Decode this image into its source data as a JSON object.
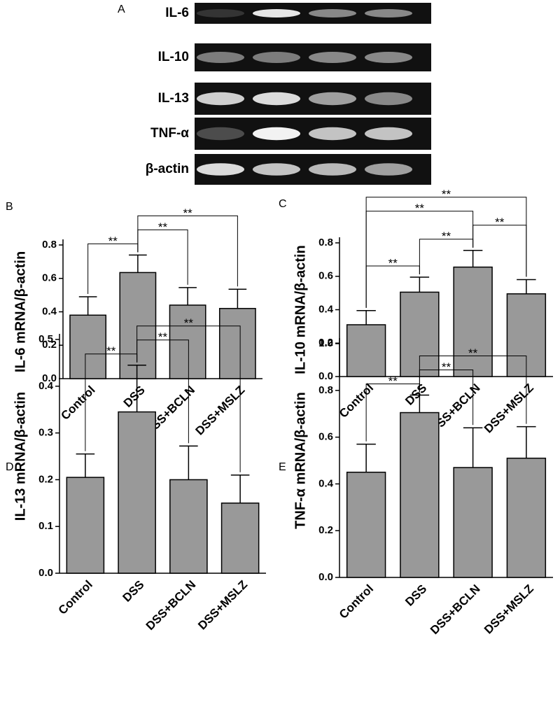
{
  "gel": {
    "panel": "A",
    "labels": [
      "IL-6",
      "IL-10",
      "IL-13",
      "TNF-α",
      "β-actin"
    ]
  },
  "chart_data": [
    {
      "type": "bar",
      "panel": "B",
      "ylabel": "IL-6 mRNA/β-actin",
      "categories": [
        "Control",
        "DSS",
        "DSS+BCLN",
        "DSS+MSLZ"
      ],
      "values": [
        0.38,
        0.635,
        0.44,
        0.42
      ],
      "errors": [
        0.11,
        0.105,
        0.105,
        0.115
      ],
      "color": "#999999",
      "ylim": [
        0,
        0.8
      ],
      "yticks": [
        {
          "value": 0,
          "label": "0.0"
        },
        0.2,
        0.4,
        0.6,
        0.8
      ],
      "annotations": [
        {
          "text": "**",
          "between": [
            "Control",
            "DSS"
          ]
        },
        {
          "text": "**",
          "between": [
            "DSS",
            "DSS+BCLN"
          ]
        },
        {
          "text": "**",
          "between": [
            "DSS",
            "DSS+MSLZ"
          ]
        }
      ]
    },
    {
      "type": "bar",
      "panel": "C",
      "ylabel": "IL-10 mRNA/β-actin",
      "categories": [
        "Control",
        "DSS",
        "DSS+BCLN",
        "DSS+MSLZ"
      ],
      "values": [
        0.31,
        0.505,
        0.655,
        0.495
      ],
      "errors": [
        0.085,
        0.09,
        0.1,
        0.085
      ],
      "color": "#999999",
      "ylim": [
        0,
        0.8
      ],
      "yticks": [
        {
          "value": 0,
          "label": "0.0"
        },
        0.2,
        0.4,
        0.6,
        0.8
      ],
      "annotations": [
        {
          "text": "**",
          "between": [
            "Control",
            "DSS"
          ]
        },
        {
          "text": "**",
          "between": [
            "DSS",
            "DSS+BCLN"
          ]
        },
        {
          "text": "**",
          "between": [
            "DSS+BCLN",
            "DSS+MSLZ"
          ]
        },
        {
          "text": "**",
          "between": [
            "Control",
            "DSS+BCLN"
          ]
        },
        {
          "text": "**",
          "between": [
            "Control",
            "DSS+MSLZ"
          ]
        }
      ]
    },
    {
      "type": "bar",
      "panel": "D",
      "ylabel": "IL-13 mRNA/β-actin",
      "categories": [
        "Control",
        "DSS",
        "DSS+BCLN",
        "DSS+MSLZ"
      ],
      "values": [
        0.205,
        0.345,
        0.2,
        0.15
      ],
      "errors": [
        0.05,
        0.1,
        0.072,
        0.06
      ],
      "color": "#999999",
      "ylim": [
        0,
        0.5
      ],
      "yticks": [
        {
          "value": 0,
          "label": "0.0"
        },
        0.1,
        0.2,
        0.3,
        0.4,
        0.5
      ],
      "annotations": [
        {
          "text": "**",
          "between": [
            "Control",
            "DSS"
          ]
        },
        {
          "text": "**",
          "between": [
            "DSS",
            "DSS+BCLN"
          ]
        },
        {
          "text": "**",
          "between": [
            "DSS",
            "DSS+MSLZ"
          ]
        }
      ]
    },
    {
      "type": "bar",
      "panel": "E",
      "ylabel": "TNF-α mRNA/β-actin",
      "categories": [
        "Control",
        "DSS",
        "DSS+BCLN",
        "DSS+MSLZ"
      ],
      "values": [
        0.45,
        0.705,
        0.47,
        0.51
      ],
      "errors": [
        0.12,
        0.075,
        0.17,
        0.135
      ],
      "color": "#999999",
      "ylim": [
        0,
        1.0
      ],
      "yticks": [
        {
          "value": 0,
          "label": "0.0"
        },
        0.2,
        0.4,
        0.6,
        0.8,
        {
          "value": 1,
          "label": "1.0"
        }
      ],
      "annotations": [
        {
          "text": "**",
          "between": [
            "Control",
            "DSS"
          ]
        },
        {
          "text": "**",
          "between": [
            "DSS",
            "DSS+BCLN"
          ]
        },
        {
          "text": "**",
          "between": [
            "DSS",
            "DSS+MSLZ"
          ]
        }
      ]
    }
  ]
}
